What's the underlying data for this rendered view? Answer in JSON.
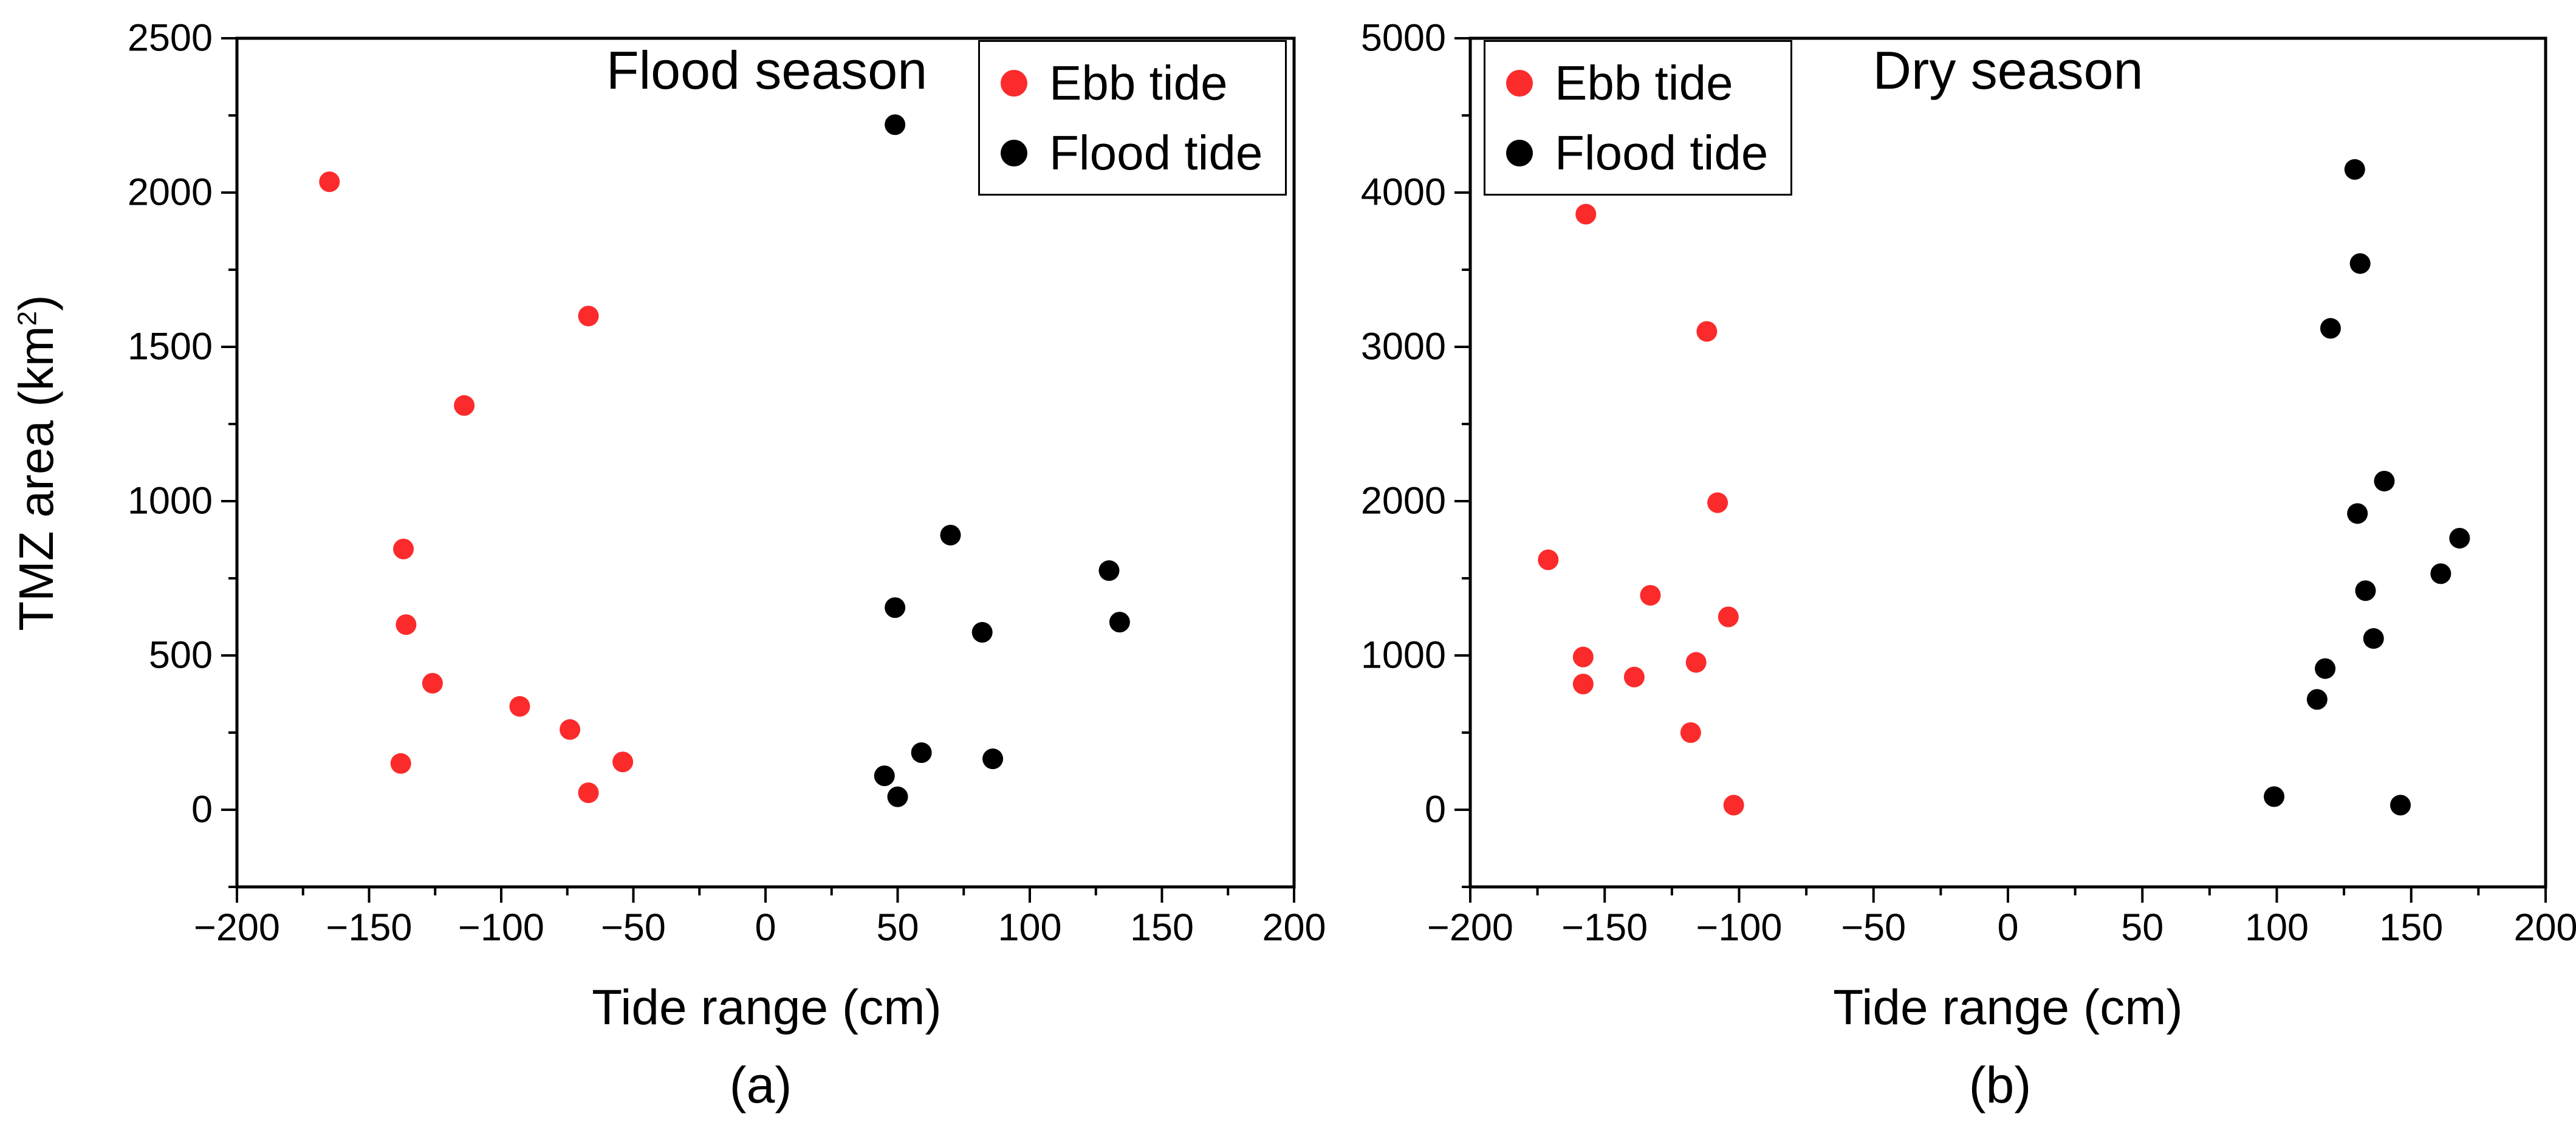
{
  "figure": {
    "background": "#ffffff",
    "axis_color": "#000000",
    "ebb_color": "#fb2b2b",
    "flood_color": "#000000"
  },
  "chart_data": [
    {
      "type": "scatter",
      "panel_label": "(a)",
      "title": "Flood season",
      "xlabel": "Tide range (cm)",
      "ylabel_parts": {
        "pre": "TMZ area (km",
        "sup": "2",
        "post": ")"
      },
      "xlim": [
        -200,
        200
      ],
      "ylim": [
        0,
        2500
      ],
      "ylim_draw_min": -250,
      "x_major_step": 50,
      "x_minor_step": 25,
      "y_major_step": 500,
      "y_minor_step": 250,
      "grid": false,
      "x_tick_values": [
        -200,
        -150,
        -100,
        -50,
        0,
        50,
        100,
        150,
        200
      ],
      "x_tick_labels": [
        "−200",
        "−150",
        "−100",
        "−50",
        "0",
        "50",
        "100",
        "150",
        "200"
      ],
      "y_tick_values": [
        0,
        500,
        1000,
        1500,
        2000,
        2500
      ],
      "y_tick_labels": [
        "0",
        "500",
        "1000",
        "1500",
        "2000",
        "2500"
      ],
      "legend": {
        "position": "top-right",
        "items": [
          {
            "label": "Ebb tide",
            "color": "#fb2b2b"
          },
          {
            "label": "Flood tide",
            "color": "#000000"
          }
        ]
      },
      "series": [
        {
          "name": "Ebb tide",
          "color": "#fb2b2b",
          "points": [
            [
              -165,
              2035
            ],
            [
              -67,
              1600
            ],
            [
              -114,
              1310
            ],
            [
              -137,
              845
            ],
            [
              -136,
              600
            ],
            [
              -126,
              410
            ],
            [
              -93,
              335
            ],
            [
              -74,
              260
            ],
            [
              -138,
              150
            ],
            [
              -54,
              155
            ],
            [
              -67,
              55
            ]
          ]
        },
        {
          "name": "Flood tide",
          "color": "#000000",
          "points": [
            [
              49,
              2220
            ],
            [
              70,
              890
            ],
            [
              130,
              775
            ],
            [
              49,
              655
            ],
            [
              82,
              575
            ],
            [
              134,
              608
            ],
            [
              59,
              185
            ],
            [
              86,
              165
            ],
            [
              45,
              110
            ],
            [
              50,
              42
            ]
          ]
        }
      ]
    },
    {
      "type": "scatter",
      "panel_label": "(b)",
      "title": "Dry season",
      "xlabel": "Tide range (cm)",
      "xlim": [
        -200,
        200
      ],
      "ylim": [
        0,
        5000
      ],
      "ylim_draw_min": -500,
      "x_major_step": 50,
      "x_minor_step": 25,
      "y_major_step": 1000,
      "y_minor_step": 500,
      "grid": false,
      "x_tick_values": [
        -200,
        -150,
        -100,
        -50,
        0,
        50,
        100,
        150,
        200
      ],
      "x_tick_labels": [
        "−200",
        "−150",
        "−100",
        "−50",
        "0",
        "50",
        "100",
        "150",
        "200"
      ],
      "y_tick_values": [
        0,
        1000,
        2000,
        3000,
        4000,
        5000
      ],
      "y_tick_labels": [
        "0",
        "1000",
        "2000",
        "3000",
        "4000",
        "5000"
      ],
      "legend": {
        "position": "top-left",
        "items": [
          {
            "label": "Ebb tide",
            "color": "#fb2b2b"
          },
          {
            "label": "Flood tide",
            "color": "#000000"
          }
        ]
      },
      "series": [
        {
          "name": "Ebb tide",
          "color": "#fb2b2b",
          "points": [
            [
              -157,
              3860
            ],
            [
              -112,
              3100
            ],
            [
              -108,
              1990
            ],
            [
              -171,
              1620
            ],
            [
              -133,
              1390
            ],
            [
              -104,
              1250
            ],
            [
              -158,
              990
            ],
            [
              -116,
              955
            ],
            [
              -139,
              860
            ],
            [
              -158,
              815
            ],
            [
              -118,
              500
            ],
            [
              -102,
              30
            ]
          ]
        },
        {
          "name": "Flood tide",
          "color": "#000000",
          "points": [
            [
              129,
              4150
            ],
            [
              131,
              3540
            ],
            [
              120,
              3120
            ],
            [
              140,
              2130
            ],
            [
              130,
              1920
            ],
            [
              168,
              1760
            ],
            [
              161,
              1530
            ],
            [
              133,
              1420
            ],
            [
              136,
              1110
            ],
            [
              118,
              915
            ],
            [
              115,
              715
            ],
            [
              99,
              85
            ],
            [
              146,
              30
            ]
          ]
        }
      ]
    }
  ]
}
